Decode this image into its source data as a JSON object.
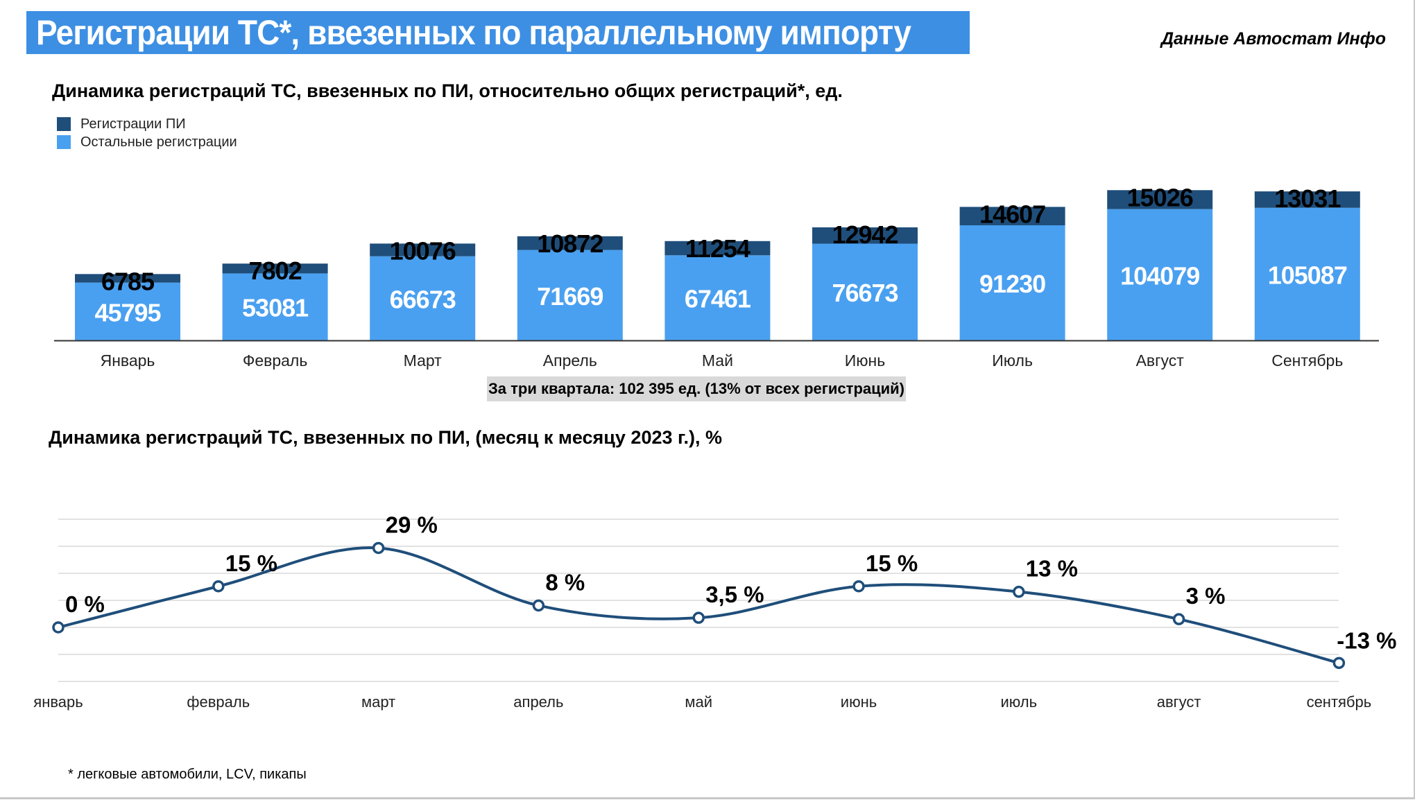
{
  "header": {
    "title": "Регистрации ТС*, ввезенных по параллельному импорту",
    "source": "Данные Автостат Инфо"
  },
  "colors": {
    "title_bg": "#3d8fe3",
    "pi": "#1f4e7a",
    "other": "#4aa0f0",
    "line": "#1f4e7a",
    "grid": "#d9d9d9",
    "summary_bg": "#d9d9d9"
  },
  "chart_data": [
    {
      "type": "bar",
      "stacked": true,
      "title": "Динамика регистраций ТС, ввезенных по ПИ, относительно общих регистраций*, ед.",
      "categories": [
        "Январь",
        "Февраль",
        "Март",
        "Апрель",
        "Май",
        "Июнь",
        "Июль",
        "Август",
        "Сентябрь"
      ],
      "series": [
        {
          "name": "Регистрации ПИ",
          "values": [
            6785,
            7802,
            10076,
            10872,
            11254,
            12942,
            14607,
            15026,
            13031
          ]
        },
        {
          "name": "Остальные регистрации",
          "values": [
            45795,
            53081,
            66673,
            71669,
            67461,
            76673,
            91230,
            104079,
            105087
          ]
        }
      ],
      "summary": "За три квартала: 102 395 ед. (13% от всех регистраций)",
      "legend": "top-left"
    },
    {
      "type": "line",
      "title": "Динамика регистраций ТС, ввезенных по ПИ, (месяц к месяцу 2023 г.), %",
      "categories": [
        "январь",
        "февраль",
        "март",
        "апрель",
        "май",
        "июнь",
        "июль",
        "август",
        "сентябрь"
      ],
      "values": [
        0,
        15,
        29,
        8,
        3.5,
        15,
        13,
        3,
        -13
      ],
      "labels": [
        "0 %",
        "15 %",
        "29 %",
        "8 %",
        "3,5 %",
        "15 %",
        "13 %",
        "3 %",
        "-13 %"
      ],
      "ylim": [
        -15,
        30
      ],
      "grid": true
    }
  ],
  "footnote": "* легковые автомобили, LCV, пикапы"
}
